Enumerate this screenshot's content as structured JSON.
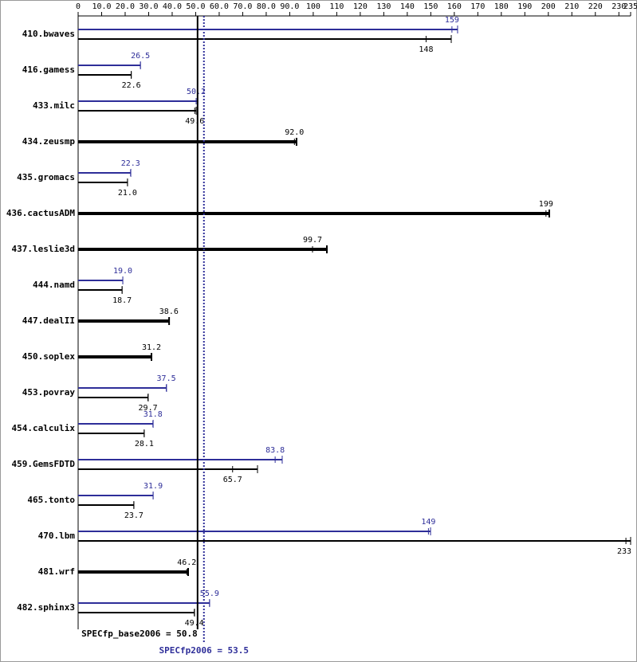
{
  "chart_data": {
    "type": "bar",
    "categories": [
      "410.bwaves",
      "416.gamess",
      "433.milc",
      "434.zeusmp",
      "435.gromacs",
      "436.cactusADM",
      "437.leslie3d",
      "444.namd",
      "447.dealII",
      "450.soplex",
      "453.povray",
      "454.calculix",
      "459.GemsFDTD",
      "465.tonto",
      "470.lbm",
      "481.wrf",
      "482.sphinx3"
    ],
    "series": [
      {
        "color": "#000000",
        "values": [
          148,
          22.6,
          49.6,
          92.0,
          21.0,
          199,
          99.7,
          18.7,
          38.6,
          31.2,
          29.7,
          28.1,
          65.7,
          23.7,
          233,
          46.2,
          49.4
        ],
        "value_labels": [
          "148",
          "22.6",
          "49.6",
          "92.0",
          "21.0",
          "199",
          "99.7",
          "18.7",
          "38.6",
          "31.2",
          "29.7",
          "28.1",
          "65.7",
          "23.7",
          "233",
          "46.2",
          "49.4"
        ],
        "max": [
          158.7,
          22.6,
          50.2,
          92.9,
          21.0,
          200.4,
          105.8,
          18.7,
          38.7,
          31.2,
          29.8,
          28.1,
          76.3,
          23.7,
          235,
          46.8,
          49.5
        ]
      },
      {
        "color": "#2e2e99",
        "values": [
          159,
          26.5,
          50.2,
          null,
          22.3,
          null,
          null,
          19.0,
          null,
          null,
          37.5,
          31.8,
          83.8,
          31.9,
          149,
          null,
          55.9
        ],
        "value_labels": [
          "159",
          "26.5",
          "50.2",
          null,
          "22.3",
          null,
          null,
          "19.0",
          null,
          null,
          "37.5",
          "31.8",
          "83.8",
          "31.9",
          "149",
          null,
          "55.9"
        ],
        "max": [
          161.4,
          26.5,
          50.9,
          null,
          22.4,
          null,
          null,
          19.0,
          null,
          null,
          37.6,
          31.9,
          86.8,
          31.9,
          149.9,
          null,
          55.9
        ]
      }
    ],
    "xlim": [
      0,
      235
    ],
    "xticks": [
      0,
      {
        "value": 10,
        "label": "10.0"
      },
      {
        "value": 20,
        "label": "20.0"
      },
      {
        "value": 30,
        "label": "30.0"
      },
      {
        "value": 40,
        "label": "40.0"
      },
      {
        "value": 50,
        "label": "50.0"
      },
      {
        "value": 60,
        "label": "60.0"
      },
      {
        "value": 70,
        "label": "70.0"
      },
      {
        "value": 80,
        "label": "80.0"
      },
      {
        "value": 90,
        "label": "90.0"
      },
      100,
      110,
      120,
      130,
      140,
      150,
      160,
      170,
      180,
      190,
      200,
      210,
      220,
      230,
      235
    ],
    "base_score": 50.8,
    "base_score_label": "SPECfp_base2006 = 50.8",
    "peak_score": 53.5,
    "peak_score_label": "SPECfp2006 = 53.5"
  }
}
